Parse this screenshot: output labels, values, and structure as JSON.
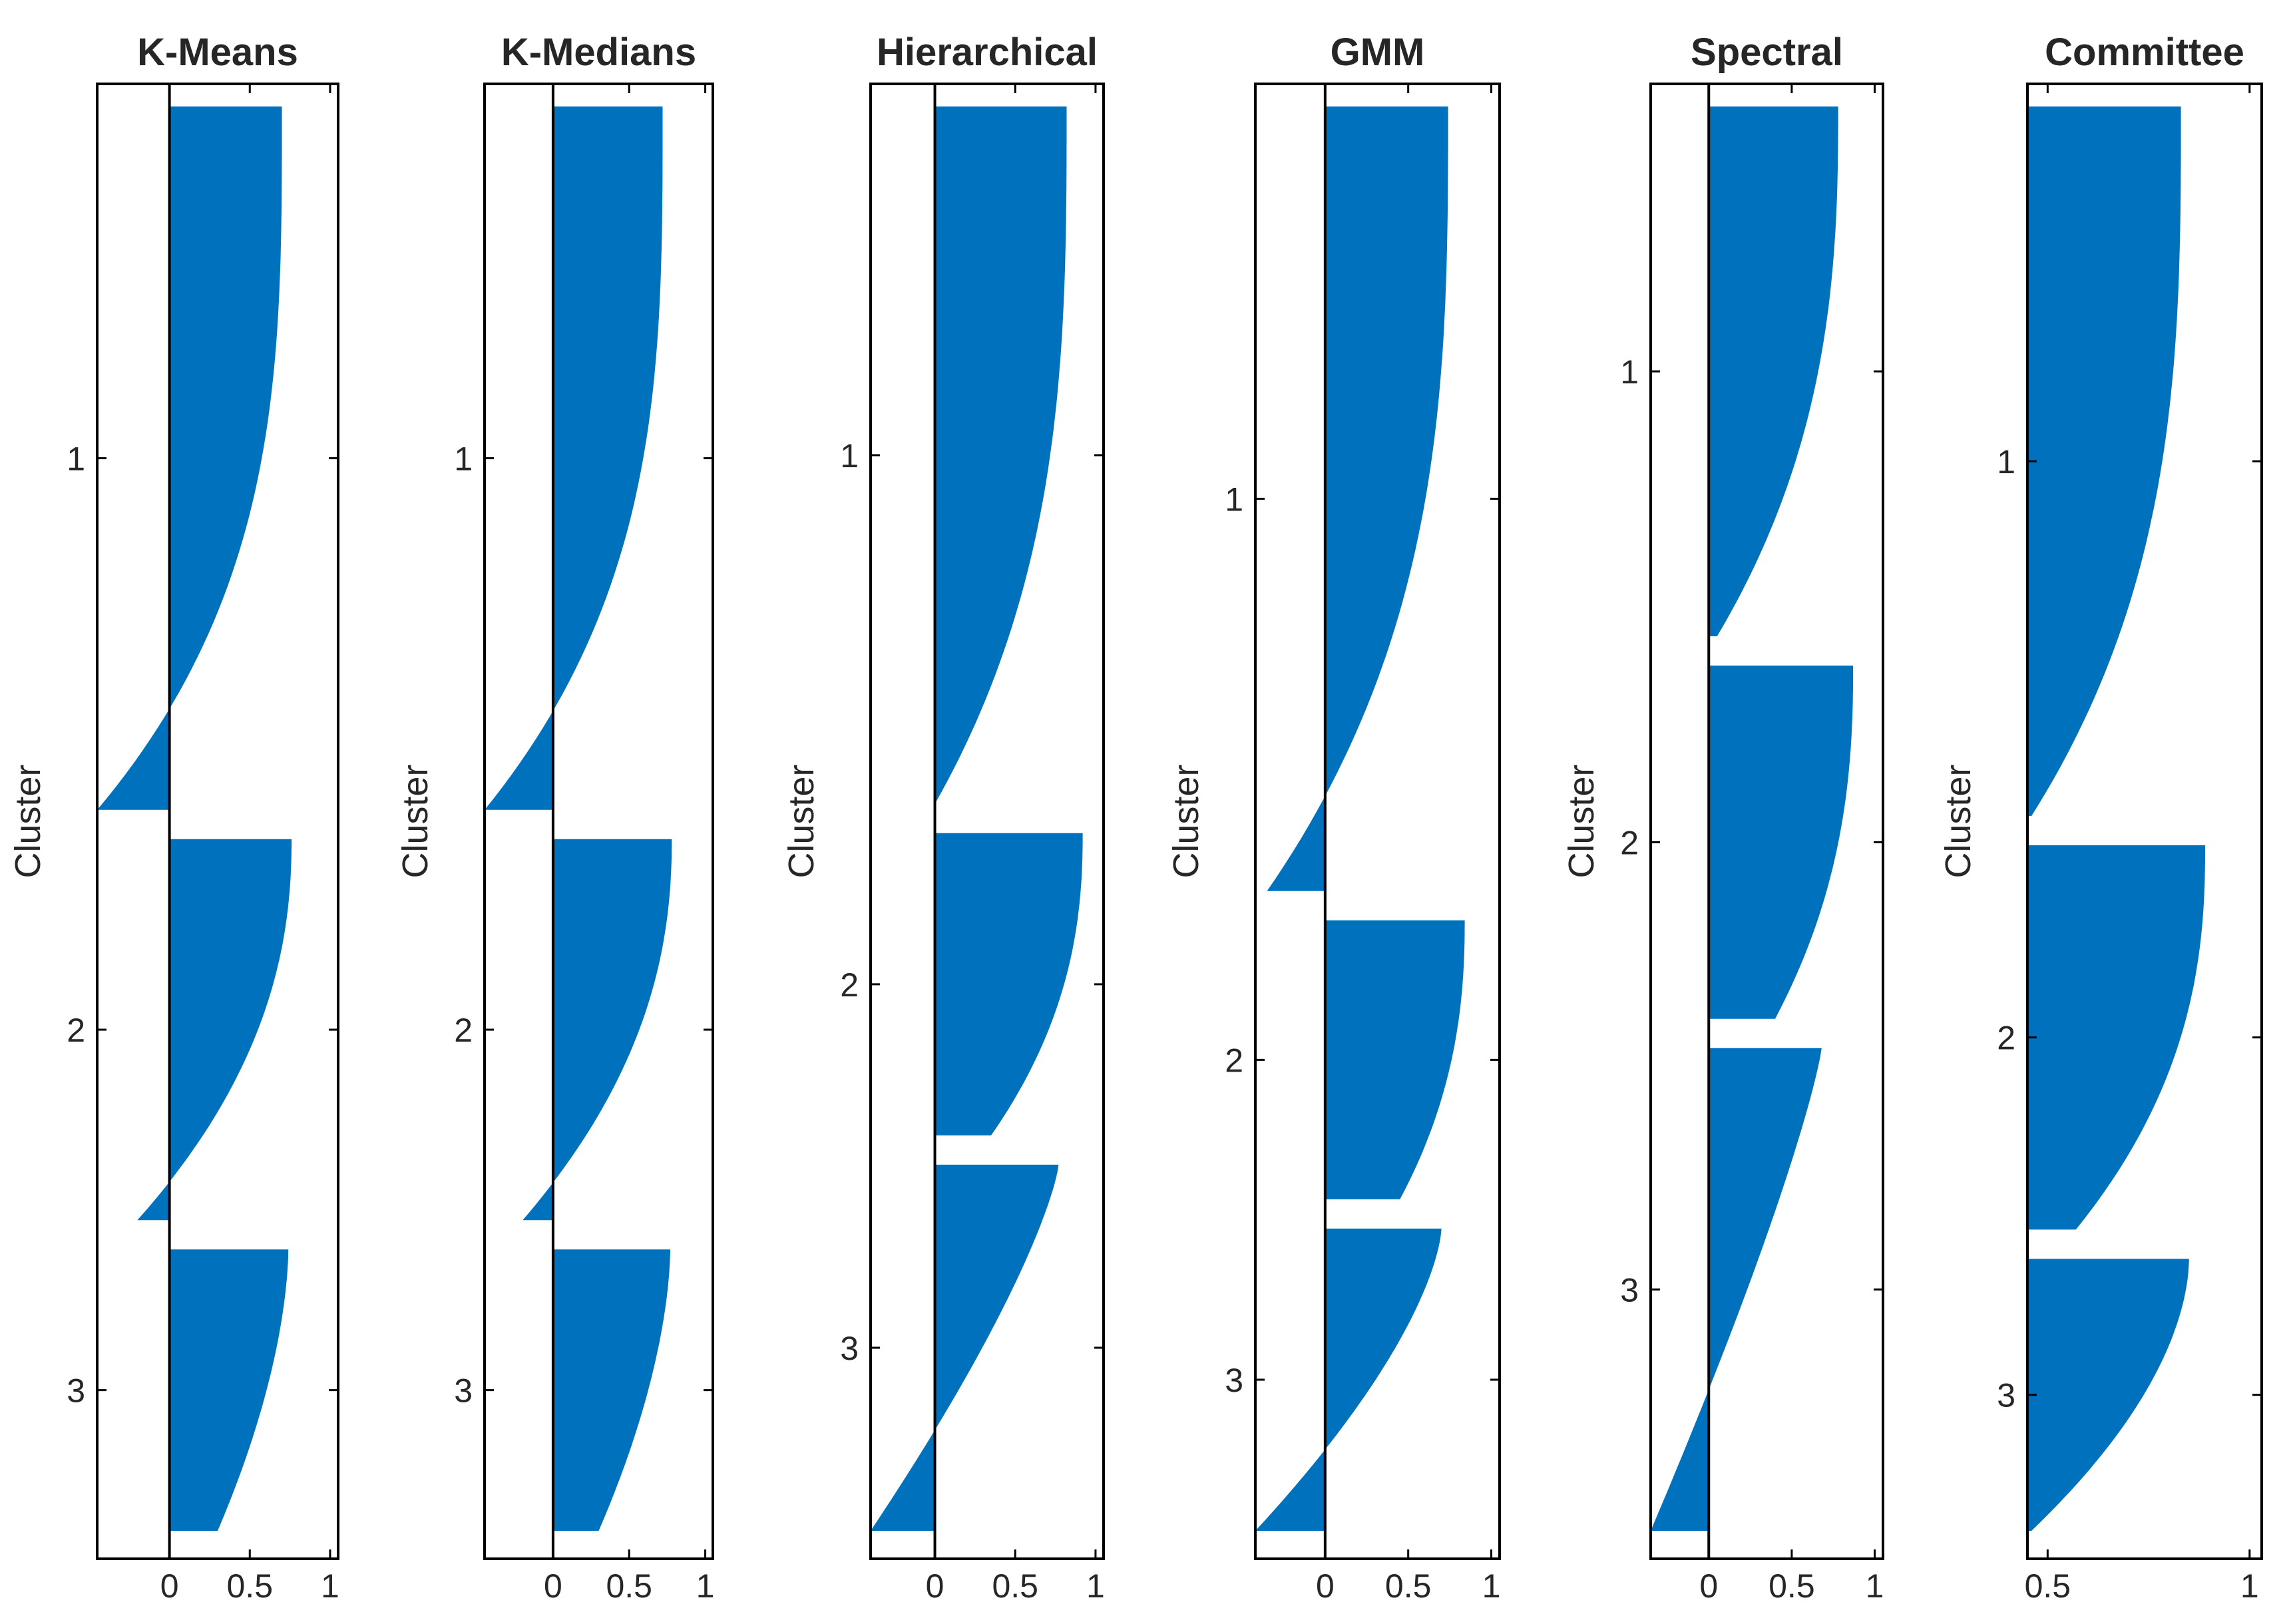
{
  "chart_data": [
    {
      "type": "bar",
      "orientation": "horizontal",
      "title": "K-Means",
      "ylabel": "Cluster",
      "xlabel": "",
      "xlim": [
        -0.45,
        1.05
      ],
      "xticks": [
        0,
        0.5,
        1
      ],
      "xtick_labels": [
        "0",
        "0.5",
        "1"
      ],
      "yticks": [
        "1",
        "2",
        "3"
      ],
      "color": "#0072BD",
      "clusters": [
        {
          "label": "1",
          "size": 120,
          "max": 0.7,
          "min": -0.45,
          "curve": 3.2
        },
        {
          "label": "2",
          "size": 65,
          "max": 0.76,
          "min": -0.2,
          "curve": 2.2
        },
        {
          "label": "3",
          "size": 48,
          "max": 0.74,
          "min": 0.3,
          "curve": 1.7
        }
      ]
    },
    {
      "type": "bar",
      "orientation": "horizontal",
      "title": "K-Medians",
      "ylabel": "Cluster",
      "xlabel": "",
      "xlim": [
        -0.45,
        1.05
      ],
      "xticks": [
        0,
        0.5,
        1
      ],
      "xtick_labels": [
        "0",
        "0.5",
        "1"
      ],
      "yticks": [
        "1",
        "2",
        "3"
      ],
      "color": "#0072BD",
      "clusters": [
        {
          "label": "1",
          "size": 120,
          "max": 0.72,
          "min": -0.45,
          "curve": 3.2
        },
        {
          "label": "2",
          "size": 65,
          "max": 0.78,
          "min": -0.2,
          "curve": 2.2
        },
        {
          "label": "3",
          "size": 48,
          "max": 0.77,
          "min": 0.3,
          "curve": 1.7
        }
      ]
    },
    {
      "type": "bar",
      "orientation": "horizontal",
      "title": "Hierarchical",
      "ylabel": "Cluster",
      "xlabel": "",
      "xlim": [
        -0.4,
        1.05
      ],
      "xticks": [
        0,
        0.5,
        1
      ],
      "xtick_labels": [
        "0",
        "0.5",
        "1"
      ],
      "yticks": [
        "1",
        "2",
        "3"
      ],
      "color": "#0072BD",
      "clusters": [
        {
          "label": "1",
          "size": 120,
          "max": 0.82,
          "min": 0.0,
          "curve": 3.0
        },
        {
          "label": "2",
          "size": 52,
          "max": 0.92,
          "min": 0.35,
          "curve": 2.3
        },
        {
          "label": "3",
          "size": 63,
          "max": 0.77,
          "min": -0.4,
          "curve": 1.3
        }
      ]
    },
    {
      "type": "bar",
      "orientation": "horizontal",
      "title": "GMM",
      "ylabel": "Cluster",
      "xlabel": "",
      "xlim": [
        -0.42,
        1.05
      ],
      "xticks": [
        0,
        0.5,
        1
      ],
      "xtick_labels": [
        "0",
        "0.5",
        "1"
      ],
      "yticks": [
        "1",
        "2",
        "3"
      ],
      "color": "#0072BD",
      "clusters": [
        {
          "label": "1",
          "size": 135,
          "max": 0.74,
          "min": -0.35,
          "curve": 3.0
        },
        {
          "label": "2",
          "size": 48,
          "max": 0.84,
          "min": 0.45,
          "curve": 2.3
        },
        {
          "label": "3",
          "size": 52,
          "max": 0.7,
          "min": -0.42,
          "curve": 1.5
        }
      ]
    },
    {
      "type": "bar",
      "orientation": "horizontal",
      "title": "Spectral",
      "ylabel": "Cluster",
      "xlabel": "",
      "xlim": [
        -0.35,
        1.05
      ],
      "xticks": [
        0,
        0.5,
        1
      ],
      "xtick_labels": [
        "0",
        "0.5",
        "1"
      ],
      "yticks": [
        "1",
        "2",
        "3"
      ],
      "color": "#0072BD",
      "clusters": [
        {
          "label": "1",
          "size": 90,
          "max": 0.78,
          "min": 0.05,
          "curve": 2.6
        },
        {
          "label": "2",
          "size": 60,
          "max": 0.87,
          "min": 0.4,
          "curve": 2.4
        },
        {
          "label": "3",
          "size": 82,
          "max": 0.68,
          "min": -0.35,
          "curve": 1.2
        }
      ]
    },
    {
      "type": "bar",
      "orientation": "horizontal",
      "title": "Committee",
      "ylabel": "Cluster",
      "xlabel": "",
      "xlim": [
        0.45,
        1.03
      ],
      "xticks": [
        0.5,
        1
      ],
      "xtick_labels": [
        "0.5",
        "1"
      ],
      "yticks": [
        "1",
        "2",
        "3"
      ],
      "color": "#0072BD",
      "clusters": [
        {
          "label": "1",
          "size": 120,
          "max": 0.83,
          "min": 0.46,
          "curve": 3.0
        },
        {
          "label": "2",
          "size": 65,
          "max": 0.89,
          "min": 0.57,
          "curve": 2.4
        },
        {
          "label": "3",
          "size": 46,
          "max": 0.85,
          "min": 0.46,
          "curve": 1.8
        }
      ]
    }
  ]
}
